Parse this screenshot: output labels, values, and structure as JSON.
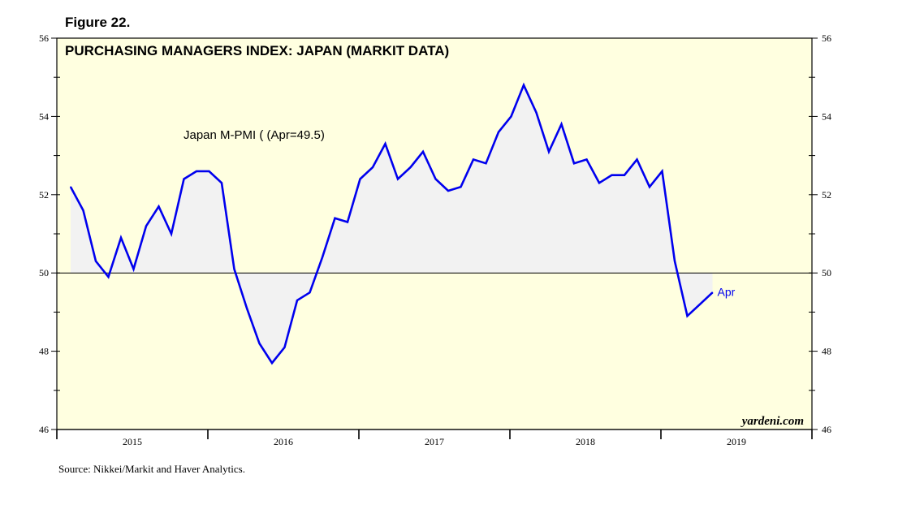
{
  "figure_label": "Figure 22.",
  "source": "Source: Nikkei/Markit and Haver Analytics.",
  "watermark": "yardeni.com",
  "colors": {
    "plot_bg": "#ffffe0",
    "line": "#0000ee",
    "fill": "#f2f2f2"
  },
  "chart_data": {
    "type": "line",
    "title": "PURCHASING MANAGERS INDEX: JAPAN (MARKIT DATA)",
    "annotation": "Japan M-PMI ( (Apr=49.5)",
    "end_label": "Apr",
    "ylim": [
      46,
      56
    ],
    "reference_line": 50,
    "y_ticks": [
      "46",
      "48",
      "50",
      "52",
      "54",
      "56"
    ],
    "x_range": [
      0,
      60
    ],
    "year_labels": [
      "2015",
      "2016",
      "2017",
      "2018",
      "2019"
    ],
    "series": [
      {
        "name": "Japan M-PMI",
        "start": "2015-01",
        "values": [
          52.2,
          51.6,
          50.3,
          49.9,
          50.9,
          50.1,
          51.2,
          51.7,
          51.0,
          52.4,
          52.6,
          52.6,
          52.3,
          50.1,
          49.1,
          48.2,
          47.7,
          48.1,
          49.3,
          49.5,
          50.4,
          51.4,
          51.3,
          52.4,
          52.7,
          53.3,
          52.4,
          52.7,
          53.1,
          52.4,
          52.1,
          52.2,
          52.9,
          52.8,
          53.6,
          54.0,
          54.8,
          54.1,
          53.1,
          53.8,
          52.8,
          52.9,
          52.3,
          52.5,
          52.5,
          52.9,
          52.2,
          52.6,
          50.3,
          48.9,
          49.2,
          49.5
        ]
      }
    ]
  }
}
